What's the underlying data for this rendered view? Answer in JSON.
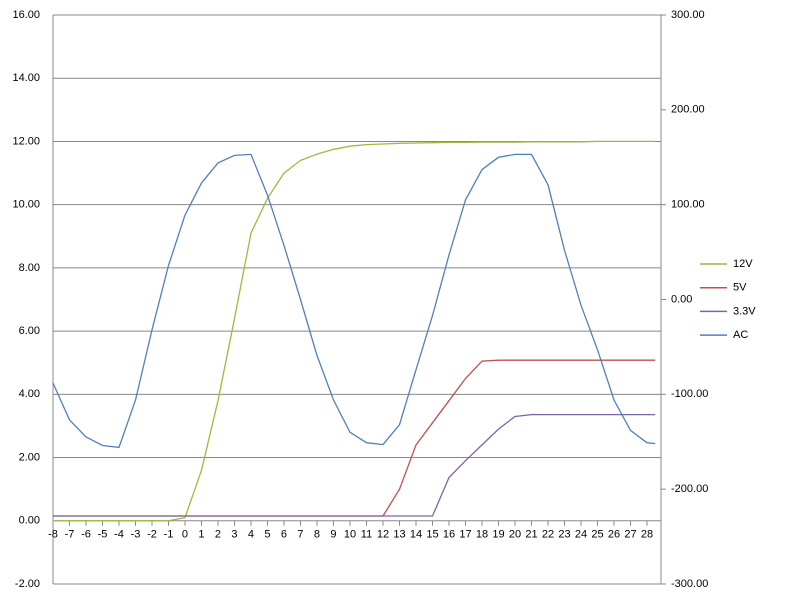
{
  "chart_data": {
    "type": "line",
    "x": [
      -8,
      -7,
      -6,
      -5,
      -4,
      -3,
      -2,
      -1,
      0,
      1,
      2,
      3,
      4,
      5,
      6,
      7,
      8,
      9,
      10,
      11,
      12,
      13,
      14,
      15,
      16,
      17,
      18,
      19,
      20,
      21,
      22,
      23,
      24,
      25,
      26,
      27,
      28,
      28.5
    ],
    "series": [
      {
        "name": "12V",
        "color": "#9bbb3b",
        "values": [
          0,
          0,
          0,
          0,
          0,
          0,
          0,
          0,
          0.1,
          1.6,
          3.8,
          6.4,
          9.1,
          10.2,
          11.0,
          11.4,
          11.6,
          11.75,
          11.85,
          11.9,
          11.92,
          11.94,
          11.95,
          11.96,
          11.97,
          11.97,
          11.98,
          11.98,
          11.98,
          11.99,
          11.99,
          11.99,
          11.99,
          12.0,
          12.0,
          12.0,
          12.0,
          12.0
        ]
      },
      {
        "name": "5V",
        "color": "#c0504d",
        "values": [
          0.15,
          0.15,
          0.15,
          0.15,
          0.15,
          0.15,
          0.15,
          0.15,
          0.15,
          0.15,
          0.15,
          0.15,
          0.15,
          0.15,
          0.15,
          0.15,
          0.15,
          0.15,
          0.15,
          0.15,
          0.15,
          1.0,
          2.4,
          3.1,
          3.8,
          4.5,
          5.05,
          5.08,
          5.08,
          5.08,
          5.08,
          5.08,
          5.08,
          5.08,
          5.08,
          5.08,
          5.08,
          5.08
        ]
      },
      {
        "name": "3.3V",
        "color": "#8064a2",
        "values": [
          0.15,
          0.15,
          0.15,
          0.15,
          0.15,
          0.15,
          0.15,
          0.15,
          0.15,
          0.15,
          0.15,
          0.15,
          0.15,
          0.15,
          0.15,
          0.15,
          0.15,
          0.15,
          0.15,
          0.15,
          0.15,
          0.15,
          0.15,
          0.15,
          1.37,
          1.9,
          2.4,
          2.9,
          3.3,
          3.36,
          3.36,
          3.36,
          3.36,
          3.36,
          3.36,
          3.36,
          3.36,
          3.36
        ]
      },
      {
        "name": "AC",
        "color": "#4f81bd",
        "axis": "y2",
        "values": [
          -88,
          -127,
          -145,
          -154,
          -156,
          -106,
          -32,
          36,
          89,
          123,
          144,
          152,
          153,
          110,
          57,
          0,
          -59,
          -106,
          -140,
          -151,
          -153,
          -132,
          -74,
          -17,
          47,
          105,
          137,
          150,
          153,
          153,
          121,
          52,
          -6,
          -53,
          -106,
          -138,
          -151,
          -152
        ]
      }
    ],
    "xlim": [
      -8,
      28.85
    ],
    "xticks": [
      -8,
      -7,
      -6,
      -5,
      -4,
      -3,
      -2,
      -1,
      0,
      1,
      2,
      3,
      4,
      5,
      6,
      7,
      8,
      9,
      10,
      11,
      12,
      13,
      14,
      15,
      16,
      17,
      18,
      19,
      20,
      21,
      22,
      23,
      24,
      25,
      26,
      27,
      28
    ],
    "ylim": [
      -2,
      16
    ],
    "yticks": [
      {
        "value": -2,
        "label": "-2.00"
      },
      {
        "value": 0,
        "label": "0.00"
      },
      {
        "value": 2,
        "label": "2.00"
      },
      {
        "value": 4,
        "label": "4.00"
      },
      {
        "value": 6,
        "label": "6.00"
      },
      {
        "value": 8,
        "label": "8.00"
      },
      {
        "value": 10,
        "label": "10.00"
      },
      {
        "value": 12,
        "label": "12.00"
      },
      {
        "value": 14,
        "label": "14.00"
      },
      {
        "value": 16,
        "label": "16.00"
      }
    ],
    "y2lim": [
      -300,
      300
    ],
    "y2ticks": [
      {
        "value": -300,
        "label": "-300.00"
      },
      {
        "value": -200,
        "label": "-200.00"
      },
      {
        "value": -100,
        "label": "-100.00"
      },
      {
        "value": 0,
        "label": "0.00"
      },
      {
        "value": 100,
        "label": "100.00"
      },
      {
        "value": 200,
        "label": "200.00"
      },
      {
        "value": 300,
        "label": "300.00"
      }
    ],
    "grid": true,
    "legend": "right"
  }
}
